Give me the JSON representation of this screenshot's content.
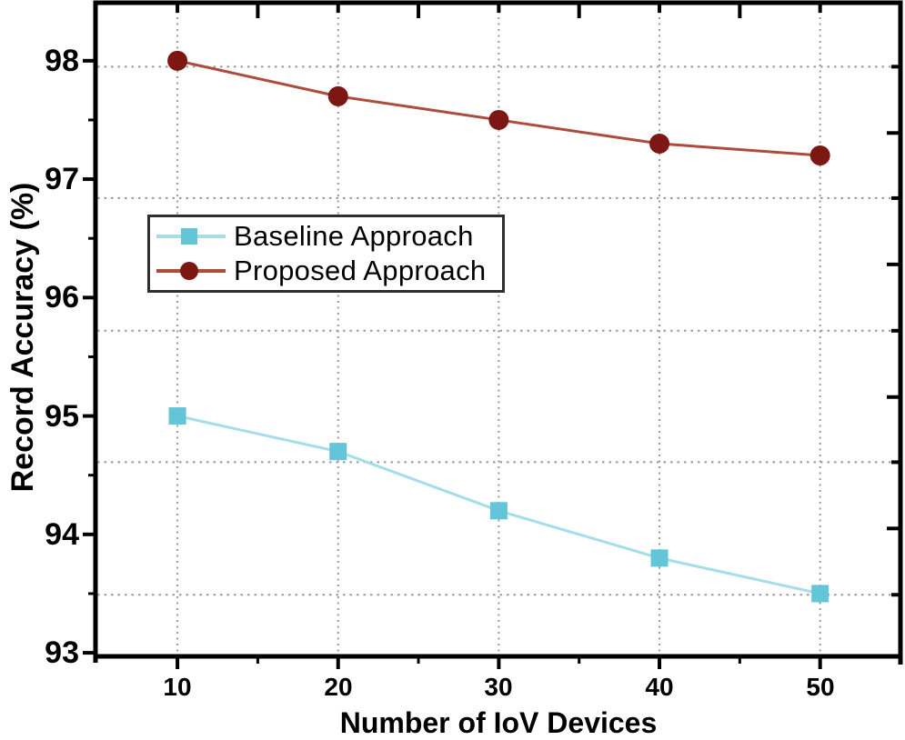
{
  "figure": {
    "background": "#ffffff",
    "axis_color": "#000000",
    "grid_color": "#999999",
    "text_color": "#000000",
    "legend_border_color": "#2e2e2e"
  },
  "chart_data": {
    "type": "line",
    "title": "",
    "xlabel": "Number of IoV Devices",
    "ylabel": "Record Accuracy (%)",
    "x": [
      10,
      20,
      30,
      40,
      50
    ],
    "series": [
      {
        "name": "Baseline Approach",
        "values": [
          95.0,
          94.7,
          94.2,
          93.8,
          93.5
        ],
        "line_color": "#a5dde9",
        "marker_color": "#63c5d8",
        "marker": "square"
      },
      {
        "name": "Proposed Approach",
        "values": [
          98.0,
          97.7,
          97.5,
          97.3,
          97.2
        ],
        "line_color": "#ad4b3c",
        "marker_color": "#7d1713",
        "marker": "circle"
      }
    ],
    "xlim": [
      4.9,
      55.0
    ],
    "ylim": [
      92.97,
      98.49
    ],
    "x_major_ticks": [
      10,
      20,
      30,
      40,
      50
    ],
    "x_minor_ticks": [
      15,
      25,
      35,
      45
    ],
    "y_major_ticks": [
      93,
      94,
      95,
      96,
      97,
      98
    ],
    "y_minor_ticks": [
      93.5,
      94.5,
      95.5,
      96.5,
      97.5
    ],
    "x_tick_labels": [
      "10",
      "20",
      "30",
      "40",
      "50"
    ],
    "y_tick_labels": [
      "93",
      "94",
      "95",
      "96",
      "97",
      "98"
    ],
    "v_gridlines": [
      10,
      20,
      30,
      40,
      50
    ],
    "h_gridlines": [
      97.95,
      96.84,
      95.72,
      94.61,
      93.49
    ],
    "right_axis_short_ticks": [
      97.95,
      96.84,
      95.72,
      94.61,
      93.49
    ],
    "right_axis_long_ticks": [
      97.39,
      96.28,
      95.16,
      94.05
    ],
    "grid": "dotted",
    "legend_position": "upper-left-inside"
  }
}
